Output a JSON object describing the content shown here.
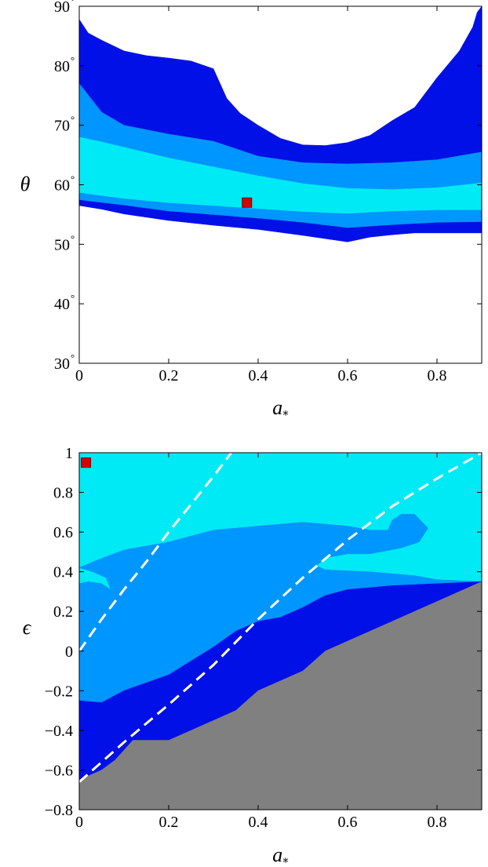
{
  "colors": {
    "innermost": "#00eaf5",
    "middle": "#0096ff",
    "outer": "#0010e6",
    "excluded": "#808080",
    "marker": "#d40000",
    "dashed": "#ffffff"
  },
  "chart_data": [
    {
      "type": "contour",
      "xlabel": "a",
      "xlabel_sub": "*",
      "ylabel": "θ",
      "xlim": [
        0,
        0.9
      ],
      "ylim": [
        30,
        90
      ],
      "x_ticks": [
        0,
        0.2,
        0.4,
        0.6,
        0.8
      ],
      "x_tick_labels": [
        "0",
        "0.2",
        "0.4",
        "0.6",
        "0.8"
      ],
      "y_ticks": [
        30,
        40,
        50,
        60,
        70,
        80,
        90
      ],
      "y_tick_labels": [
        "30",
        "40",
        "50",
        "60",
        "70",
        "80",
        "90"
      ],
      "y_tick_suffix": "°",
      "regions": [
        {
          "level": "outer",
          "polygon": [
            [
              0,
              87.8
            ],
            [
              0.02,
              85.5
            ],
            [
              0.05,
              84.3
            ],
            [
              0.1,
              82.5
            ],
            [
              0.15,
              81.7
            ],
            [
              0.2,
              81.3
            ],
            [
              0.25,
              80.8
            ],
            [
              0.3,
              79.5
            ],
            [
              0.33,
              74.5
            ],
            [
              0.36,
              72
            ],
            [
              0.4,
              70
            ],
            [
              0.45,
              67.8
            ],
            [
              0.5,
              66.7
            ],
            [
              0.55,
              66.6
            ],
            [
              0.6,
              67.1
            ],
            [
              0.65,
              68.3
            ],
            [
              0.7,
              70.8
            ],
            [
              0.75,
              73
            ],
            [
              0.8,
              78
            ],
            [
              0.85,
              82.5
            ],
            [
              0.88,
              86.5
            ],
            [
              0.89,
              89
            ],
            [
              0.9,
              90
            ],
            [
              0.9,
              51.9
            ],
            [
              0.85,
              51.9
            ],
            [
              0.75,
              51.9
            ],
            [
              0.7,
              51.6
            ],
            [
              0.65,
              51.2
            ],
            [
              0.6,
              50.4
            ],
            [
              0.5,
              51.5
            ],
            [
              0.4,
              52.5
            ],
            [
              0.3,
              53.2
            ],
            [
              0.2,
              54
            ],
            [
              0.1,
              55.1
            ],
            [
              0.05,
              55.9
            ],
            [
              0,
              56.5
            ]
          ]
        },
        {
          "level": "middle",
          "polygon": [
            [
              0,
              77
            ],
            [
              0.05,
              72.2
            ],
            [
              0.1,
              70
            ],
            [
              0.2,
              68.5
            ],
            [
              0.3,
              67.3
            ],
            [
              0.4,
              64.8
            ],
            [
              0.5,
              63.7
            ],
            [
              0.6,
              63.5
            ],
            [
              0.7,
              63.7
            ],
            [
              0.8,
              64.2
            ],
            [
              0.9,
              65.5
            ],
            [
              0.9,
              53.8
            ],
            [
              0.8,
              53.7
            ],
            [
              0.7,
              53.3
            ],
            [
              0.6,
              52.8
            ],
            [
              0.5,
              53.7
            ],
            [
              0.4,
              54.4
            ],
            [
              0.3,
              55
            ],
            [
              0.2,
              55.6
            ],
            [
              0.1,
              56.6
            ],
            [
              0,
              57.5
            ]
          ]
        },
        {
          "level": "innermost",
          "polygon": [
            [
              0,
              68
            ],
            [
              0.05,
              67.2
            ],
            [
              0.1,
              66.3
            ],
            [
              0.2,
              64.5
            ],
            [
              0.3,
              63
            ],
            [
              0.4,
              61.5
            ],
            [
              0.5,
              60.2
            ],
            [
              0.6,
              59.4
            ],
            [
              0.7,
              59.2
            ],
            [
              0.8,
              59.5
            ],
            [
              0.9,
              60.3
            ],
            [
              0.9,
              55.8
            ],
            [
              0.8,
              55.8
            ],
            [
              0.7,
              55.6
            ],
            [
              0.6,
              55.2
            ],
            [
              0.5,
              55.5
            ],
            [
              0.4,
              56
            ],
            [
              0.3,
              56.5
            ],
            [
              0.2,
              57
            ],
            [
              0.1,
              57.7
            ],
            [
              0,
              58.7
            ]
          ]
        }
      ],
      "best_fit": {
        "x": 0.375,
        "y": 57
      }
    },
    {
      "type": "contour",
      "xlabel": "a",
      "xlabel_sub": "*",
      "ylabel": "ϵ",
      "xlim": [
        0,
        0.9
      ],
      "ylim": [
        -0.8,
        1
      ],
      "x_ticks": [
        0,
        0.2,
        0.4,
        0.6,
        0.8
      ],
      "x_tick_labels": [
        "0",
        "0.2",
        "0.4",
        "0.6",
        "0.8"
      ],
      "y_ticks": [
        -0.8,
        -0.6,
        -0.4,
        -0.2,
        0,
        0.2,
        0.4,
        0.6,
        0.8,
        1
      ],
      "y_tick_labels": [
        "−0.8",
        "−0.6",
        "−0.4",
        "−0.2",
        "0",
        "0.2",
        "0.4",
        "0.6",
        "0.8",
        "1"
      ],
      "background_level": "innermost",
      "regions": [
        {
          "level": "middle",
          "polygon": [
            [
              0,
              0.42
            ],
            [
              0.03,
              0.45
            ],
            [
              0.1,
              0.51
            ],
            [
              0.2,
              0.55
            ],
            [
              0.3,
              0.61
            ],
            [
              0.4,
              0.63
            ],
            [
              0.5,
              0.65
            ],
            [
              0.6,
              0.63
            ],
            [
              0.65,
              0.61
            ],
            [
              0.69,
              0.61
            ],
            [
              0.7,
              0.66
            ],
            [
              0.72,
              0.69
            ],
            [
              0.75,
              0.69
            ],
            [
              0.78,
              0.62
            ],
            [
              0.76,
              0.55
            ],
            [
              0.72,
              0.52
            ],
            [
              0.65,
              0.49
            ],
            [
              0.6,
              0.49
            ],
            [
              0.55,
              0.47
            ],
            [
              0.53,
              0.43
            ],
            [
              0.55,
              0.41
            ],
            [
              0.65,
              0.4
            ],
            [
              0.75,
              0.38
            ],
            [
              0.8,
              0.36
            ],
            [
              0.9,
              0.35
            ],
            [
              0.9,
              -0.8
            ],
            [
              0,
              -0.8
            ],
            [
              0,
              0.34
            ],
            [
              0.02,
              0.35
            ],
            [
              0.05,
              0.34
            ],
            [
              0.07,
              0.31
            ],
            [
              0.06,
              0.37
            ],
            [
              0.03,
              0.4
            ]
          ]
        },
        {
          "level": "outer",
          "polygon": [
            [
              0,
              -0.25
            ],
            [
              0.05,
              -0.26
            ],
            [
              0.1,
              -0.2
            ],
            [
              0.2,
              -0.12
            ],
            [
              0.25,
              -0.05
            ],
            [
              0.3,
              0.02
            ],
            [
              0.35,
              0.1
            ],
            [
              0.4,
              0.15
            ],
            [
              0.45,
              0.17
            ],
            [
              0.5,
              0.22
            ],
            [
              0.55,
              0.28
            ],
            [
              0.6,
              0.31
            ],
            [
              0.65,
              0.32
            ],
            [
              0.7,
              0.33
            ],
            [
              0.9,
              0.35
            ],
            [
              0.9,
              -0.8
            ],
            [
              0,
              -0.8
            ]
          ]
        },
        {
          "level": "excluded",
          "polygon": [
            [
              0,
              -0.65
            ],
            [
              0.05,
              -0.6
            ],
            [
              0.08,
              -0.55
            ],
            [
              0.12,
              -0.45
            ],
            [
              0.2,
              -0.45
            ],
            [
              0.25,
              -0.4
            ],
            [
              0.3,
              -0.35
            ],
            [
              0.35,
              -0.3
            ],
            [
              0.4,
              -0.2
            ],
            [
              0.45,
              -0.15
            ],
            [
              0.5,
              -0.1
            ],
            [
              0.55,
              0.0
            ],
            [
              0.6,
              0.05
            ],
            [
              0.65,
              0.1
            ],
            [
              0.7,
              0.15
            ],
            [
              0.75,
              0.2
            ],
            [
              0.8,
              0.25
            ],
            [
              0.85,
              0.3
            ],
            [
              0.9,
              0.35
            ],
            [
              0.9,
              -0.8
            ],
            [
              0,
              -0.8
            ]
          ]
        }
      ],
      "dashed_lines": [
        [
          [
            0,
            0
          ],
          [
            0.05,
            0.16
          ],
          [
            0.1,
            0.31
          ],
          [
            0.15,
            0.45
          ],
          [
            0.2,
            0.6
          ],
          [
            0.25,
            0.74
          ],
          [
            0.3,
            0.88
          ],
          [
            0.34,
            1.0
          ]
        ],
        [
          [
            0,
            -0.66
          ],
          [
            0.1,
            -0.46
          ],
          [
            0.2,
            -0.27
          ],
          [
            0.3,
            -0.07
          ],
          [
            0.4,
            0.16
          ],
          [
            0.5,
            0.37
          ],
          [
            0.6,
            0.56
          ],
          [
            0.7,
            0.73
          ],
          [
            0.8,
            0.87
          ],
          [
            0.9,
            1.0
          ]
        ]
      ],
      "best_fit": {
        "x": 0.015,
        "y": 0.95
      }
    }
  ]
}
